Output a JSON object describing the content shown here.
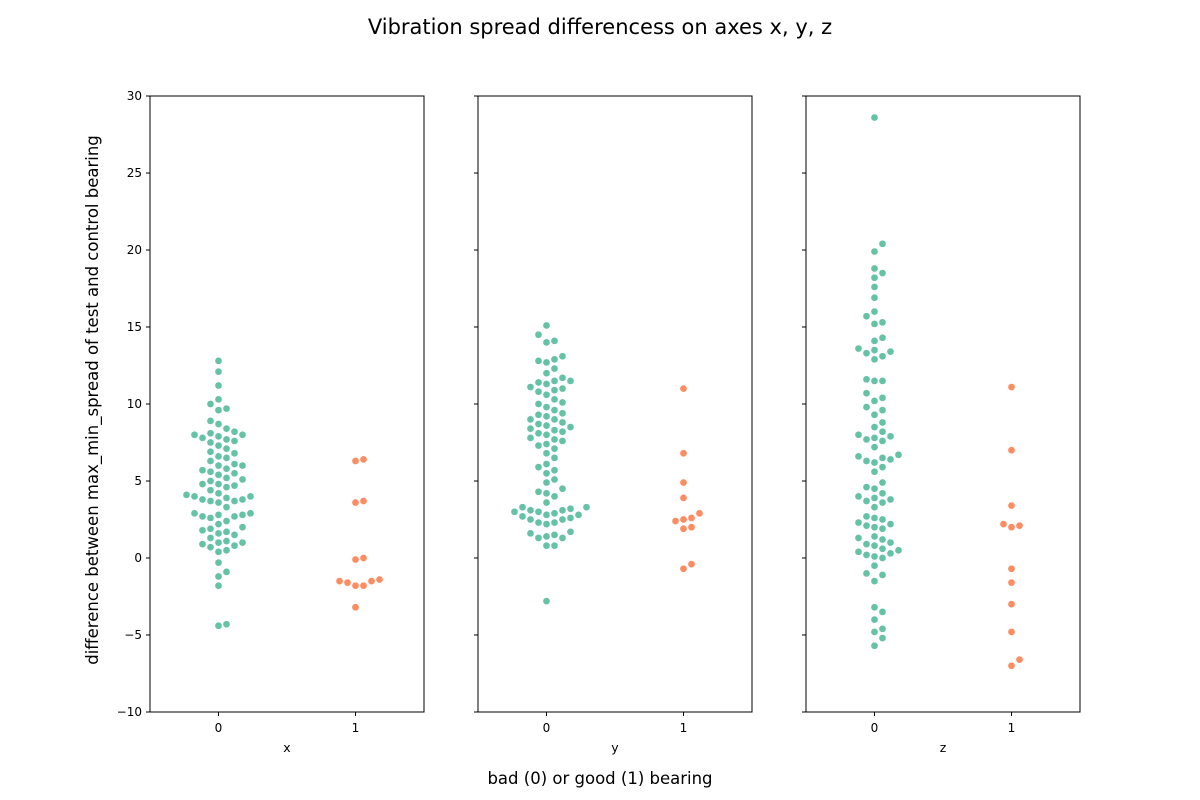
{
  "figure": {
    "title": "Vibration spread differencess on axes x, y, z",
    "xlabel": "bad (0) or good (1) bearing",
    "ylabel": "difference between max_min_spread of test and control bearing"
  },
  "colors": {
    "bad": "#66c2a5",
    "good": "#fc8d62"
  },
  "chart_data": [
    {
      "type": "scatter",
      "subtype": "swarm",
      "xlabel": "x",
      "categories": [
        "0",
        "1"
      ],
      "ylim": [
        -10,
        30
      ],
      "yticks": [
        "−10",
        "−5",
        "0",
        "5",
        "10",
        "15",
        "20",
        "25",
        "30"
      ],
      "series": [
        {
          "category": "0",
          "values": [
            -4.4,
            -4.3,
            -1.8,
            -1.2,
            -0.9,
            -0.3,
            0.4,
            0.5,
            0.7,
            0.8,
            0.9,
            1.0,
            1.0,
            1.1,
            1.3,
            1.5,
            1.6,
            1.7,
            1.8,
            1.9,
            2.0,
            2.2,
            2.4,
            2.6,
            2.7,
            2.7,
            2.8,
            2.8,
            2.9,
            2.9,
            3.3,
            3.6,
            3.7,
            3.7,
            3.8,
            3.8,
            3.9,
            4.0,
            4.0,
            4.1,
            4.2,
            4.4,
            4.6,
            4.7,
            4.8,
            4.8,
            5.0,
            5.1,
            5.2,
            5.4,
            5.5,
            5.6,
            5.7,
            5.8,
            6.0,
            6.0,
            6.1,
            6.3,
            6.5,
            6.6,
            6.8,
            6.9,
            7.1,
            7.3,
            7.5,
            7.6,
            7.7,
            7.8,
            7.9,
            8.0,
            8.0,
            8.1,
            8.2,
            8.4,
            8.7,
            8.9,
            9.6,
            9.7,
            10.0,
            10.3,
            11.2,
            12.1,
            12.8
          ]
        },
        {
          "category": "1",
          "values": [
            -3.2,
            -1.8,
            -1.8,
            -1.6,
            -1.5,
            -1.5,
            -1.4,
            -0.1,
            0.0,
            3.6,
            3.7,
            6.3,
            6.4
          ]
        }
      ]
    },
    {
      "type": "scatter",
      "subtype": "swarm",
      "xlabel": "y",
      "categories": [
        "0",
        "1"
      ],
      "ylim": [
        -10,
        30
      ],
      "yticks": [
        "−10",
        "−5",
        "0",
        "5",
        "10",
        "15",
        "20",
        "25",
        "30"
      ],
      "series": [
        {
          "category": "0",
          "values": [
            -2.8,
            0.8,
            0.8,
            1.3,
            1.3,
            1.4,
            1.5,
            1.6,
            1.7,
            2.2,
            2.3,
            2.3,
            2.5,
            2.5,
            2.6,
            2.7,
            2.8,
            2.8,
            2.9,
            3.0,
            3.0,
            3.1,
            3.1,
            3.2,
            3.3,
            3.3,
            3.6,
            4.0,
            4.2,
            4.3,
            4.5,
            4.9,
            5.1,
            5.5,
            5.7,
            5.9,
            6.1,
            6.5,
            6.8,
            7.1,
            7.3,
            7.4,
            7.6,
            7.7,
            7.8,
            8.0,
            8.1,
            8.2,
            8.3,
            8.4,
            8.5,
            8.6,
            8.7,
            8.8,
            9.0,
            9.0,
            9.2,
            9.3,
            9.4,
            9.6,
            9.8,
            10.0,
            10.1,
            10.3,
            10.6,
            10.8,
            10.9,
            11.0,
            11.1,
            11.3,
            11.4,
            11.5,
            11.5,
            11.7,
            12.0,
            12.3,
            12.7,
            12.8,
            12.9,
            13.1,
            14.0,
            14.1,
            14.5,
            15.1
          ]
        },
        {
          "category": "1",
          "values": [
            -0.7,
            -0.4,
            1.9,
            2.0,
            2.4,
            2.5,
            2.6,
            2.9,
            3.9,
            4.9,
            6.8,
            11.0
          ]
        }
      ]
    },
    {
      "type": "scatter",
      "subtype": "swarm",
      "xlabel": "z",
      "categories": [
        "0",
        "1"
      ],
      "ylim": [
        -10,
        30
      ],
      "yticks": [
        "−10",
        "−5",
        "0",
        "5",
        "10",
        "15",
        "20",
        "25",
        "30"
      ],
      "series": [
        {
          "category": "0",
          "values": [
            -5.7,
            -5.2,
            -4.8,
            -4.6,
            -4.0,
            -3.5,
            -3.2,
            -1.5,
            -1.1,
            -1.0,
            -0.5,
            0.0,
            0.1,
            0.2,
            0.3,
            0.4,
            0.5,
            0.6,
            0.8,
            0.9,
            1.0,
            1.2,
            1.3,
            1.4,
            1.9,
            2.0,
            2.1,
            2.2,
            2.3,
            2.5,
            2.6,
            2.7,
            3.3,
            3.6,
            3.7,
            3.8,
            3.9,
            4.0,
            4.2,
            4.5,
            4.6,
            4.9,
            5.6,
            5.9,
            6.2,
            6.3,
            6.4,
            6.5,
            6.6,
            6.7,
            7.2,
            7.6,
            7.7,
            7.8,
            7.9,
            8.0,
            8.2,
            8.5,
            8.8,
            9.3,
            9.6,
            9.8,
            10.2,
            10.4,
            10.7,
            11.5,
            11.5,
            11.6,
            12.9,
            13.1,
            13.3,
            13.4,
            13.5,
            13.6,
            14.1,
            14.3,
            15.2,
            15.3,
            15.7,
            16.0,
            16.9,
            17.6,
            18.2,
            18.5,
            18.8,
            19.9,
            20.4,
            28.6
          ]
        },
        {
          "category": "1",
          "values": [
            -7.0,
            -6.6,
            -4.8,
            -3.0,
            -1.6,
            -0.7,
            2.0,
            2.1,
            2.2,
            3.4,
            7.0,
            11.1
          ]
        }
      ]
    }
  ]
}
